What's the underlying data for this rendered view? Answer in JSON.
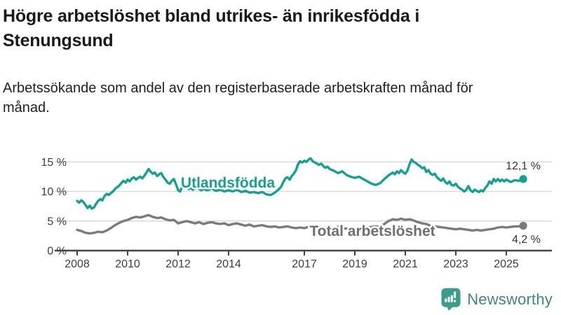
{
  "title": "Högre arbetslöshet bland utrikes- än inrikesfödda i Stenungsund",
  "subtitle": "Arbetssökande som andel av den registerbaserade arbetskraften månad för månad.",
  "branding": {
    "wordmark": "Newsworthy",
    "icon": "newsworthy-chart-bubble-icon",
    "icon_color": "#3a9c8b",
    "text_color": "#41857d"
  },
  "chart_data": {
    "type": "line",
    "title": "Högre arbetslöshet bland utrikes- än inrikesfödda i Stenungsund",
    "xlabel": "",
    "ylabel": "",
    "grid": "horizontal",
    "gridline_color": "#d9d9d9",
    "axis_color": "#444444",
    "x_axis": {
      "ticks": [
        2008,
        2010,
        2012,
        2014,
        2017,
        2019,
        2021,
        2023,
        2025
      ],
      "range": [
        2008,
        2025.7
      ]
    },
    "y_axis": {
      "tick_values": [
        0,
        5,
        10,
        15
      ],
      "tick_labels": [
        "0 %",
        "5 %",
        "10 %",
        "15 %"
      ],
      "range": [
        0,
        16
      ]
    },
    "series": [
      {
        "name": "Utlandsfödda",
        "color": "#16a08f",
        "end_value": 12.1,
        "end_label": "12,1 %",
        "points": [
          [
            2008.0,
            8.4
          ],
          [
            2008.08,
            8.1
          ],
          [
            2008.17,
            8.5
          ],
          [
            2008.25,
            8.2
          ],
          [
            2008.33,
            7.7
          ],
          [
            2008.42,
            7.2
          ],
          [
            2008.5,
            7.6
          ],
          [
            2008.58,
            7.1
          ],
          [
            2008.67,
            7.3
          ],
          [
            2008.75,
            7.9
          ],
          [
            2008.83,
            8.4
          ],
          [
            2008.92,
            8.7
          ],
          [
            2009.0,
            8.5
          ],
          [
            2009.08,
            9.2
          ],
          [
            2009.17,
            9.6
          ],
          [
            2009.25,
            9.4
          ],
          [
            2009.33,
            9.7
          ],
          [
            2009.42,
            10.0
          ],
          [
            2009.5,
            10.4
          ],
          [
            2009.58,
            10.7
          ],
          [
            2009.67,
            11.0
          ],
          [
            2009.75,
            11.4
          ],
          [
            2009.83,
            11.8
          ],
          [
            2009.92,
            11.5
          ],
          [
            2010.0,
            12.0
          ],
          [
            2010.08,
            11.7
          ],
          [
            2010.17,
            12.2
          ],
          [
            2010.25,
            12.4
          ],
          [
            2010.33,
            12.0
          ],
          [
            2010.42,
            12.3
          ],
          [
            2010.5,
            12.5
          ],
          [
            2010.58,
            12.2
          ],
          [
            2010.67,
            12.7
          ],
          [
            2010.75,
            13.2
          ],
          [
            2010.83,
            13.8
          ],
          [
            2010.92,
            13.3
          ],
          [
            2011.0,
            13.0
          ],
          [
            2011.08,
            13.2
          ],
          [
            2011.17,
            12.6
          ],
          [
            2011.25,
            12.9
          ],
          [
            2011.33,
            13.1
          ],
          [
            2011.42,
            12.4
          ],
          [
            2011.5,
            12.0
          ],
          [
            2011.58,
            11.5
          ],
          [
            2011.67,
            11.3
          ],
          [
            2011.75,
            11.8
          ],
          [
            2011.83,
            12.1
          ],
          [
            2011.92,
            11.2
          ],
          [
            2012.0,
            10.2
          ],
          [
            2012.08,
            10.0
          ],
          [
            2012.17,
            10.9
          ],
          [
            2012.25,
            11.3
          ],
          [
            2012.33,
            10.7
          ],
          [
            2012.42,
            10.4
          ],
          [
            2012.5,
            10.6
          ],
          [
            2012.58,
            10.3
          ],
          [
            2012.67,
            10.5
          ],
          [
            2012.75,
            10.7
          ],
          [
            2012.83,
            10.4
          ],
          [
            2012.92,
            10.2
          ],
          [
            2013.0,
            10.4
          ],
          [
            2013.17,
            10.2
          ],
          [
            2013.33,
            10.5
          ],
          [
            2013.5,
            10.1
          ],
          [
            2013.67,
            10.3
          ],
          [
            2013.83,
            10.0
          ],
          [
            2014.0,
            10.2
          ],
          [
            2014.17,
            10.0
          ],
          [
            2014.33,
            10.3
          ],
          [
            2014.5,
            9.9
          ],
          [
            2014.67,
            10.1
          ],
          [
            2014.83,
            9.8
          ],
          [
            2015.0,
            9.9
          ],
          [
            2015.17,
            9.7
          ],
          [
            2015.33,
            9.9
          ],
          [
            2015.5,
            9.5
          ],
          [
            2015.67,
            9.4
          ],
          [
            2015.83,
            9.8
          ],
          [
            2016.0,
            10.4
          ],
          [
            2016.08,
            10.8
          ],
          [
            2016.17,
            11.6
          ],
          [
            2016.25,
            12.2
          ],
          [
            2016.33,
            12.4
          ],
          [
            2016.42,
            12.0
          ],
          [
            2016.5,
            12.6
          ],
          [
            2016.58,
            13.0
          ],
          [
            2016.67,
            13.6
          ],
          [
            2016.75,
            14.6
          ],
          [
            2016.83,
            15.1
          ],
          [
            2016.92,
            14.9
          ],
          [
            2017.0,
            15.2
          ],
          [
            2017.08,
            15.0
          ],
          [
            2017.17,
            15.4
          ],
          [
            2017.25,
            15.6
          ],
          [
            2017.33,
            15.1
          ],
          [
            2017.42,
            14.9
          ],
          [
            2017.5,
            14.7
          ],
          [
            2017.58,
            14.5
          ],
          [
            2017.67,
            14.7
          ],
          [
            2017.75,
            14.3
          ],
          [
            2017.83,
            14.0
          ],
          [
            2017.92,
            14.2
          ],
          [
            2018.0,
            13.8
          ],
          [
            2018.17,
            13.5
          ],
          [
            2018.33,
            13.1
          ],
          [
            2018.5,
            13.4
          ],
          [
            2018.67,
            12.8
          ],
          [
            2018.83,
            12.5
          ],
          [
            2019.0,
            12.3
          ],
          [
            2019.17,
            12.5
          ],
          [
            2019.33,
            12.1
          ],
          [
            2019.5,
            11.7
          ],
          [
            2019.67,
            11.3
          ],
          [
            2019.83,
            11.1
          ],
          [
            2020.0,
            11.4
          ],
          [
            2020.17,
            12.1
          ],
          [
            2020.33,
            12.7
          ],
          [
            2020.5,
            13.2
          ],
          [
            2020.58,
            12.9
          ],
          [
            2020.67,
            13.4
          ],
          [
            2020.75,
            13.1
          ],
          [
            2020.83,
            13.6
          ],
          [
            2020.92,
            13.2
          ],
          [
            2021.0,
            13.0
          ],
          [
            2021.08,
            13.5
          ],
          [
            2021.17,
            14.6
          ],
          [
            2021.25,
            15.4
          ],
          [
            2021.33,
            15.0
          ],
          [
            2021.42,
            14.8
          ],
          [
            2021.5,
            14.5
          ],
          [
            2021.58,
            14.3
          ],
          [
            2021.67,
            13.9
          ],
          [
            2021.75,
            14.1
          ],
          [
            2021.83,
            13.3
          ],
          [
            2021.92,
            13.6
          ],
          [
            2022.0,
            13.0
          ],
          [
            2022.08,
            12.8
          ],
          [
            2022.17,
            13.0
          ],
          [
            2022.25,
            12.4
          ],
          [
            2022.33,
            12.1
          ],
          [
            2022.42,
            11.8
          ],
          [
            2022.5,
            12.2
          ],
          [
            2022.58,
            11.6
          ],
          [
            2022.67,
            11.3
          ],
          [
            2022.75,
            11.7
          ],
          [
            2022.83,
            11.1
          ],
          [
            2022.92,
            11.0
          ],
          [
            2023.0,
            11.3
          ],
          [
            2023.08,
            10.8
          ],
          [
            2023.17,
            10.5
          ],
          [
            2023.25,
            10.3
          ],
          [
            2023.33,
            10.0
          ],
          [
            2023.42,
            10.3
          ],
          [
            2023.5,
            10.9
          ],
          [
            2023.58,
            10.2
          ],
          [
            2023.67,
            9.9
          ],
          [
            2023.75,
            10.3
          ],
          [
            2023.83,
            10.1
          ],
          [
            2023.92,
            9.9
          ],
          [
            2024.0,
            10.2
          ],
          [
            2024.08,
            10.0
          ],
          [
            2024.17,
            10.6
          ],
          [
            2024.25,
            11.0
          ],
          [
            2024.33,
            11.7
          ],
          [
            2024.42,
            11.3
          ],
          [
            2024.5,
            12.1
          ],
          [
            2024.58,
            11.7
          ],
          [
            2024.67,
            12.1
          ],
          [
            2024.75,
            11.7
          ],
          [
            2024.83,
            12.0
          ],
          [
            2024.92,
            11.7
          ],
          [
            2025.0,
            12.0
          ],
          [
            2025.17,
            11.6
          ],
          [
            2025.33,
            11.9
          ],
          [
            2025.5,
            11.8
          ],
          [
            2025.67,
            12.1
          ]
        ]
      },
      {
        "name": "Total arbetslöshet",
        "color": "#7b7b7b",
        "end_value": 4.2,
        "end_label": "4,2 %",
        "points": [
          [
            2008.0,
            3.5
          ],
          [
            2008.17,
            3.3
          ],
          [
            2008.33,
            3.0
          ],
          [
            2008.5,
            2.9
          ],
          [
            2008.67,
            3.0
          ],
          [
            2008.83,
            3.2
          ],
          [
            2009.0,
            3.1
          ],
          [
            2009.17,
            3.4
          ],
          [
            2009.33,
            3.8
          ],
          [
            2009.5,
            4.3
          ],
          [
            2009.67,
            4.7
          ],
          [
            2009.83,
            5.0
          ],
          [
            2010.0,
            5.2
          ],
          [
            2010.17,
            5.5
          ],
          [
            2010.33,
            5.7
          ],
          [
            2010.5,
            5.6
          ],
          [
            2010.67,
            5.8
          ],
          [
            2010.83,
            6.0
          ],
          [
            2011.0,
            5.7
          ],
          [
            2011.17,
            5.5
          ],
          [
            2011.33,
            5.6
          ],
          [
            2011.5,
            5.3
          ],
          [
            2011.67,
            5.1
          ],
          [
            2011.83,
            5.2
          ],
          [
            2012.0,
            4.6
          ],
          [
            2012.17,
            4.8
          ],
          [
            2012.33,
            5.0
          ],
          [
            2012.5,
            4.8
          ],
          [
            2012.67,
            4.6
          ],
          [
            2012.83,
            4.8
          ],
          [
            2013.0,
            4.5
          ],
          [
            2013.17,
            4.7
          ],
          [
            2013.33,
            4.8
          ],
          [
            2013.5,
            4.6
          ],
          [
            2013.67,
            4.5
          ],
          [
            2013.83,
            4.6
          ],
          [
            2014.0,
            4.3
          ],
          [
            2014.17,
            4.5
          ],
          [
            2014.33,
            4.6
          ],
          [
            2014.5,
            4.4
          ],
          [
            2014.67,
            4.2
          ],
          [
            2014.83,
            4.4
          ],
          [
            2015.0,
            4.1
          ],
          [
            2015.17,
            4.2
          ],
          [
            2015.33,
            4.3
          ],
          [
            2015.5,
            4.1
          ],
          [
            2015.67,
            4.0
          ],
          [
            2015.83,
            4.1
          ],
          [
            2016.0,
            3.9
          ],
          [
            2016.17,
            4.0
          ],
          [
            2016.33,
            4.1
          ],
          [
            2016.5,
            3.9
          ],
          [
            2016.67,
            3.8
          ],
          [
            2016.83,
            3.9
          ],
          [
            2017.0,
            3.8
          ],
          [
            2017.17,
            4.0
          ],
          [
            2017.33,
            4.1
          ],
          [
            2017.5,
            3.9
          ],
          [
            2017.67,
            3.8
          ],
          [
            2017.83,
            3.9
          ],
          [
            2018.0,
            3.7
          ],
          [
            2018.17,
            3.9
          ],
          [
            2018.33,
            4.0
          ],
          [
            2018.5,
            3.8
          ],
          [
            2018.67,
            3.7
          ],
          [
            2018.83,
            3.8
          ],
          [
            2019.0,
            3.7
          ],
          [
            2019.17,
            3.9
          ],
          [
            2019.33,
            4.0
          ],
          [
            2019.5,
            3.9
          ],
          [
            2019.67,
            4.0
          ],
          [
            2019.83,
            4.1
          ],
          [
            2020.0,
            4.0
          ],
          [
            2020.17,
            4.5
          ],
          [
            2020.33,
            5.0
          ],
          [
            2020.5,
            5.3
          ],
          [
            2020.67,
            5.2
          ],
          [
            2020.83,
            5.4
          ],
          [
            2021.0,
            5.2
          ],
          [
            2021.17,
            5.3
          ],
          [
            2021.33,
            5.1
          ],
          [
            2021.5,
            4.8
          ],
          [
            2021.67,
            4.6
          ],
          [
            2021.83,
            4.5
          ],
          [
            2022.0,
            4.2
          ],
          [
            2022.17,
            4.1
          ],
          [
            2022.33,
            4.0
          ],
          [
            2022.5,
            3.9
          ],
          [
            2022.67,
            3.8
          ],
          [
            2022.83,
            3.7
          ],
          [
            2023.0,
            3.6
          ],
          [
            2023.17,
            3.7
          ],
          [
            2023.33,
            3.6
          ],
          [
            2023.5,
            3.5
          ],
          [
            2023.67,
            3.4
          ],
          [
            2023.83,
            3.5
          ],
          [
            2024.0,
            3.4
          ],
          [
            2024.17,
            3.5
          ],
          [
            2024.33,
            3.6
          ],
          [
            2024.5,
            3.7
          ],
          [
            2024.67,
            3.9
          ],
          [
            2024.83,
            4.0
          ],
          [
            2025.0,
            3.9
          ],
          [
            2025.17,
            4.0
          ],
          [
            2025.33,
            4.1
          ],
          [
            2025.5,
            4.1
          ],
          [
            2025.67,
            4.2
          ]
        ]
      }
    ]
  }
}
